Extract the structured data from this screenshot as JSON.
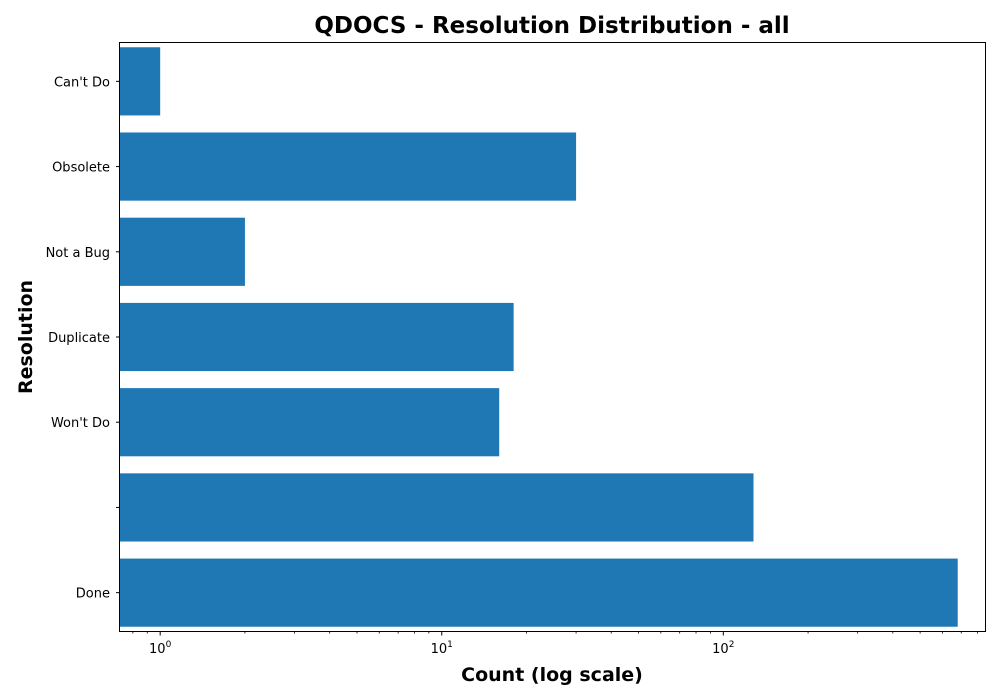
{
  "chart_data": {
    "type": "bar",
    "orientation": "horizontal",
    "title": "QDOCS - Resolution Distribution - all",
    "xlabel": "Count (log scale)",
    "ylabel": "Resolution",
    "x_scale": "log",
    "xlim": [
      0.72,
      850
    ],
    "categories": [
      "Done",
      "",
      "Won't Do",
      "Duplicate",
      "Not a Bug",
      "Obsolete",
      "Can't Do"
    ],
    "values": [
      680,
      128,
      16,
      18,
      2,
      30,
      1
    ],
    "x_ticks": [
      {
        "base": "10",
        "exp": "0",
        "value": 1
      },
      {
        "base": "10",
        "exp": "1",
        "value": 10
      },
      {
        "base": "10",
        "exp": "2",
        "value": 100
      }
    ],
    "bar_color": "#1f77b4",
    "grid": false,
    "legend": "none"
  }
}
